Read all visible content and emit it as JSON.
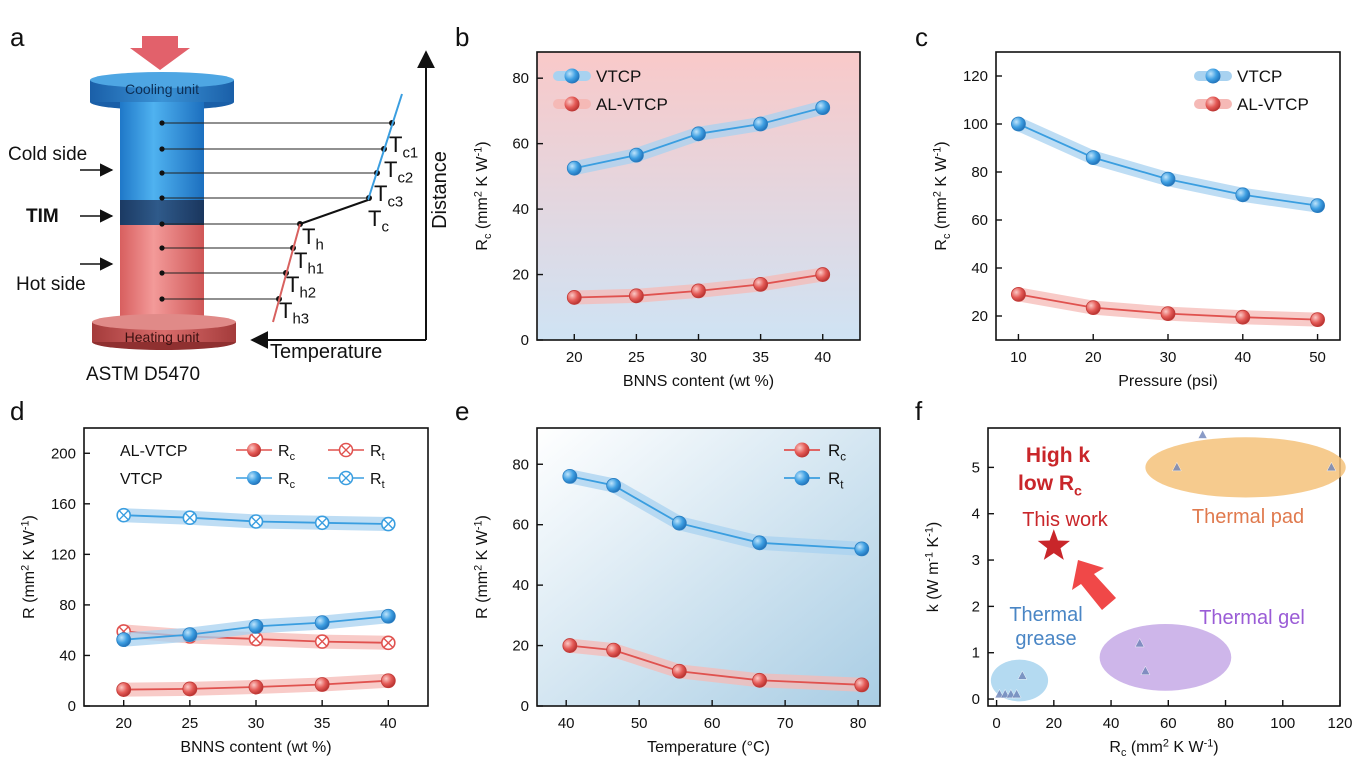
{
  "colors": {
    "blue": "#3a9ee0",
    "red": "#e0524f",
    "blue_band": "#a8d2f0",
    "red_band": "#f5b9b6",
    "orange": "#f5c27a",
    "purple": "#c6a9e6",
    "light_blue": "#a7d3ee",
    "star": "#c9262a"
  },
  "panel_a": {
    "letter": "a",
    "cooling_label": "Cooling unit",
    "heating_label": "Heating unit",
    "cold_side_label": "Cold side",
    "tim_label": "TIM",
    "hot_side_label": "Hot side",
    "standard_label": "ASTM D5470",
    "distance_label": "Distance",
    "temperature_label": "Temperature",
    "temp_labels": [
      {
        "main": "T",
        "sub": "c1"
      },
      {
        "main": "T",
        "sub": "c2"
      },
      {
        "main": "T",
        "sub": "c3"
      },
      {
        "main": "T",
        "sub": "c"
      },
      {
        "main": "T",
        "sub": "h"
      },
      {
        "main": "T",
        "sub": "h1"
      },
      {
        "main": "T",
        "sub": "h2"
      },
      {
        "main": "T",
        "sub": "h3"
      }
    ]
  },
  "chart_data": [
    {
      "id": "b",
      "letter": "b",
      "type": "line",
      "xlabel": "BNNS content (wt %)",
      "ylabel": {
        "main": "R",
        "sub": "c",
        "rest": " (mm",
        "sup": "2",
        "tail": " K W",
        "sup2": "-1",
        "end": ")"
      },
      "xlim": [
        17,
        43
      ],
      "ylim": [
        0,
        88
      ],
      "xticks": [
        20,
        25,
        30,
        35,
        40
      ],
      "yticks": [
        0,
        20,
        40,
        60,
        80
      ],
      "legend": {
        "position": "top-left",
        "entries": [
          "VTCP",
          "AL-VTCP"
        ]
      },
      "x": [
        20,
        25,
        30,
        35,
        40
      ],
      "series": [
        {
          "name": "VTCP",
          "values": [
            52.5,
            56.5,
            63,
            66,
            71
          ],
          "color": "blue"
        },
        {
          "name": "AL-VTCP",
          "values": [
            13,
            13.5,
            15,
            17,
            20
          ],
          "color": "red"
        }
      ]
    },
    {
      "id": "c",
      "letter": "c",
      "type": "line",
      "xlabel": "Pressure (psi)",
      "ylabel": {
        "main": "R",
        "sub": "c",
        "rest": " (mm",
        "sup": "2",
        "tail": " K W",
        "sup2": "-1",
        "end": ")"
      },
      "xlim": [
        7,
        53
      ],
      "ylim": [
        10,
        130
      ],
      "xticks": [
        10,
        20,
        30,
        40,
        50
      ],
      "yticks": [
        20,
        40,
        60,
        80,
        100,
        120
      ],
      "legend": {
        "position": "top-right",
        "entries": [
          "VTCP",
          "AL-VTCP"
        ]
      },
      "x": [
        10,
        20,
        30,
        40,
        50
      ],
      "series": [
        {
          "name": "VTCP",
          "values": [
            100,
            86,
            77,
            70.5,
            66
          ],
          "color": "blue"
        },
        {
          "name": "AL-VTCP",
          "values": [
            29,
            23.5,
            21,
            19.5,
            18.5
          ],
          "color": "red"
        }
      ]
    },
    {
      "id": "d",
      "letter": "d",
      "type": "line",
      "xlabel": "BNNS content (wt %)",
      "ylabel": {
        "main": "R",
        "sub": "",
        "rest": " (mm",
        "sup": "2",
        "tail": " K W",
        "sup2": "-1",
        "end": ")"
      },
      "xlim": [
        17,
        43
      ],
      "ylim": [
        0,
        220
      ],
      "xticks": [
        20,
        25,
        30,
        35,
        40
      ],
      "yticks": [
        0,
        40,
        80,
        120,
        160,
        200
      ],
      "legend": {
        "position": "top-left",
        "rows": [
          {
            "label": "AL-VTCP",
            "rc": {
              "main": "R",
              "sub": "c"
            },
            "rt": {
              "main": "R",
              "sub": "t"
            }
          },
          {
            "label": "VTCP",
            "rc": {
              "main": "R",
              "sub": "c"
            },
            "rt": {
              "main": "R",
              "sub": "t"
            }
          }
        ]
      },
      "x": [
        20,
        25,
        30,
        35,
        40
      ],
      "series": [
        {
          "name": "VTCP Rt",
          "values": [
            151,
            149,
            146,
            145,
            144
          ],
          "color": "blue",
          "marker": "cross"
        },
        {
          "name": "AL-VTCP Rt",
          "values": [
            59,
            55,
            53,
            51,
            50
          ],
          "color": "red",
          "marker": "cross"
        },
        {
          "name": "VTCP Rc",
          "values": [
            52.5,
            56.5,
            63,
            66,
            71
          ],
          "color": "blue",
          "marker": "filled"
        },
        {
          "name": "AL-VTCP Rc",
          "values": [
            13,
            13.5,
            15,
            17,
            20
          ],
          "color": "red",
          "marker": "filled"
        }
      ]
    },
    {
      "id": "e",
      "letter": "e",
      "type": "line",
      "xlabel": "Temperature (°C)",
      "ylabel": {
        "main": "R",
        "sub": "",
        "rest": " (mm",
        "sup": "2",
        "tail": " K W",
        "sup2": "-1",
        "end": ")"
      },
      "xlim": [
        36,
        83
      ],
      "ylim": [
        0,
        92
      ],
      "xticks": [
        40,
        50,
        60,
        70,
        80
      ],
      "yticks": [
        0,
        20,
        40,
        60,
        80
      ],
      "legend": {
        "position": "top-right",
        "entries": [
          {
            "main": "R",
            "sub": "c"
          },
          {
            "main": "R",
            "sub": "t"
          }
        ]
      },
      "x": [
        40.5,
        46.5,
        55.5,
        66.5,
        80.5
      ],
      "series": [
        {
          "name": "Rt",
          "values": [
            76,
            73,
            60.5,
            54,
            52
          ],
          "color": "blue"
        },
        {
          "name": "Rc",
          "values": [
            20,
            18.5,
            11.5,
            8.5,
            7
          ],
          "color": "red"
        }
      ]
    },
    {
      "id": "f",
      "letter": "f",
      "type": "scatter",
      "xlabel": {
        "main": "R",
        "sub": "c",
        "rest": " (mm",
        "sup": "2",
        "tail": " K W",
        "sup2": "-1",
        "end": ")"
      },
      "ylabel": {
        "main": "k (W m",
        "sup": "-1",
        "tail": " K",
        "sup2": "-1",
        "end": ")"
      },
      "xlim": [
        -3,
        120
      ],
      "ylim": [
        -0.15,
        5.85
      ],
      "xticks": [
        0,
        20,
        40,
        60,
        80,
        100,
        120
      ],
      "yticks": [
        0,
        1,
        2,
        3,
        4,
        5
      ],
      "highlight": {
        "line1": "High k",
        "line2_main": "low R",
        "line2_sub": "c",
        "work": "This work",
        "x": 20,
        "y": 3.3
      },
      "groups": [
        {
          "name": "Thermal pad",
          "color": "orange",
          "cx": 87,
          "cy": 5.0,
          "rx": 35,
          "ry": 0.65,
          "points": [
            [
              63,
              5.0
            ],
            [
              72,
              5.7
            ],
            [
              117,
              5.0
            ]
          ]
        },
        {
          "name": "Thermal gel",
          "color": "purple",
          "cx": 59,
          "cy": 0.9,
          "rx": 23,
          "ry": 0.72,
          "points": [
            [
              50,
              1.2
            ],
            [
              52,
              0.6
            ]
          ]
        },
        {
          "name": "Thermal grease",
          "color": "light_blue",
          "cx": 8,
          "cy": 0.4,
          "rx": 10,
          "ry": 0.45,
          "points": [
            [
              1,
              0.1
            ],
            [
              3,
              0.1
            ],
            [
              5,
              0.1
            ],
            [
              7,
              0.1
            ],
            [
              9,
              0.5
            ]
          ]
        }
      ],
      "group_labels": {
        "pad": "Thermal pad",
        "gel": "Thermal gel",
        "grease_1": "Thermal",
        "grease_2": "grease"
      }
    }
  ]
}
